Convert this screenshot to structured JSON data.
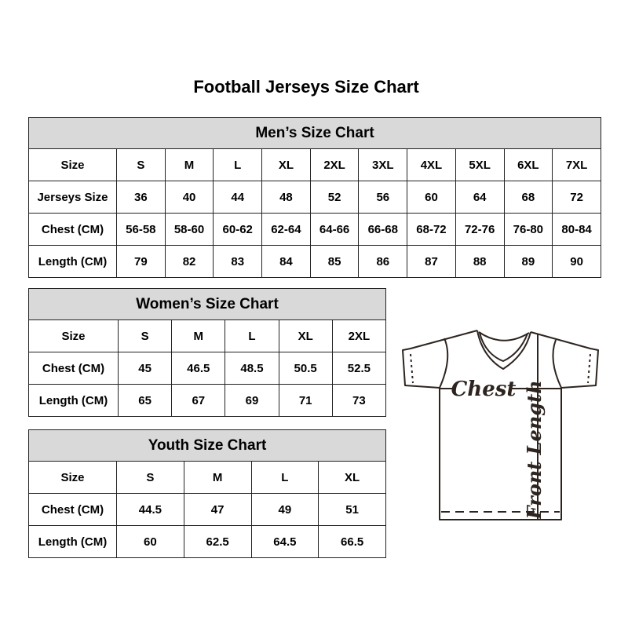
{
  "title": "Football Jerseys Size Chart",
  "chart_data": [
    {
      "type": "table",
      "title": "Men’s Size Chart",
      "columns": [
        "Size",
        "S",
        "M",
        "L",
        "XL",
        "2XL",
        "3XL",
        "4XL",
        "5XL",
        "6XL",
        "7XL"
      ],
      "rows": [
        [
          "Jerseys Size",
          "36",
          "40",
          "44",
          "48",
          "52",
          "56",
          "60",
          "64",
          "68",
          "72"
        ],
        [
          "Chest (CM)",
          "56-58",
          "58-60",
          "60-62",
          "62-64",
          "64-66",
          "66-68",
          "68-72",
          "72-76",
          "76-80",
          "80-84"
        ],
        [
          "Length (CM)",
          "79",
          "82",
          "83",
          "84",
          "85",
          "86",
          "87",
          "88",
          "89",
          "90"
        ]
      ]
    },
    {
      "type": "table",
      "title": "Women’s Size Chart",
      "columns": [
        "Size",
        "S",
        "M",
        "L",
        "XL",
        "2XL"
      ],
      "rows": [
        [
          "Chest (CM)",
          "45",
          "46.5",
          "48.5",
          "50.5",
          "52.5"
        ],
        [
          "Length (CM)",
          "65",
          "67",
          "69",
          "71",
          "73"
        ]
      ]
    },
    {
      "type": "table",
      "title": "Youth Size Chart",
      "columns": [
        "Size",
        "S",
        "M",
        "L",
        "XL"
      ],
      "rows": [
        [
          "Chest (CM)",
          "44.5",
          "47",
          "49",
          "51"
        ],
        [
          "Length (CM)",
          "60",
          "62.5",
          "64.5",
          "66.5"
        ]
      ]
    }
  ],
  "diagram": {
    "chest_label": "Chest",
    "front_length_label": "Front Length"
  },
  "colors": {
    "table_header_bg": "#d9d9d9",
    "table_border": "#222222",
    "text": "#000000",
    "diagram_line": "#2d2420"
  }
}
